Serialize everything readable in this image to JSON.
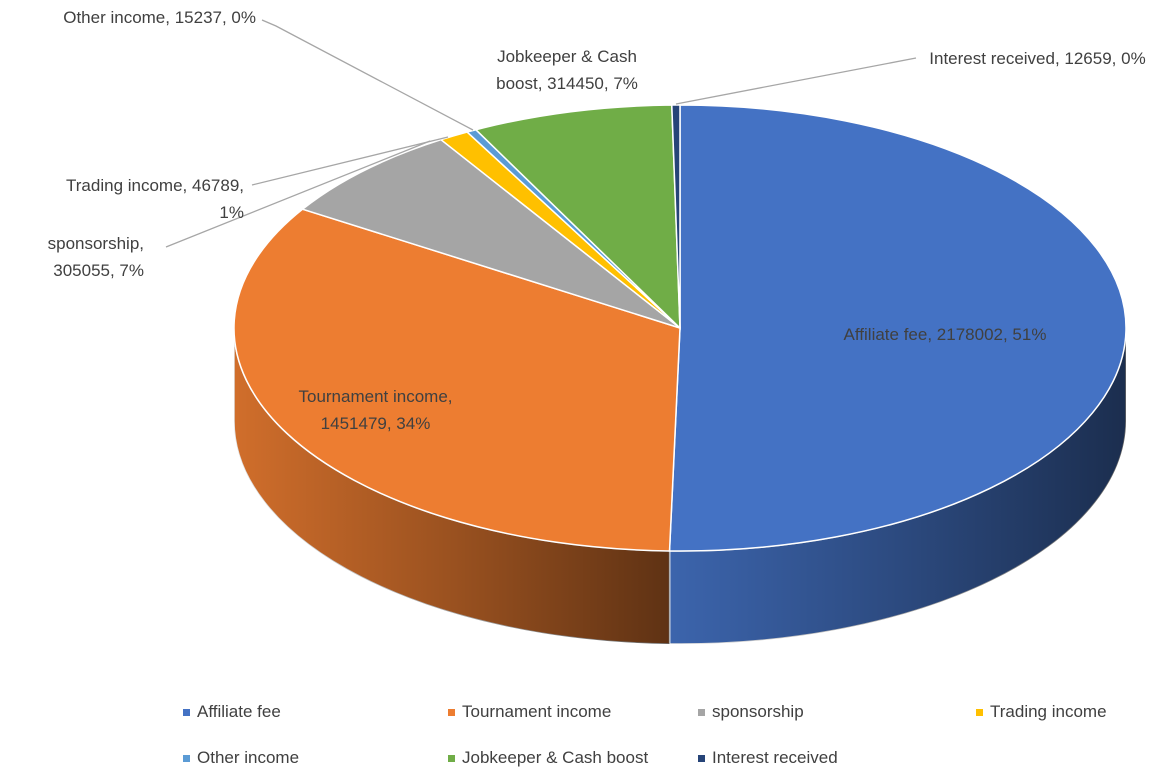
{
  "chart_data": {
    "type": "pie3d",
    "categories": [
      "Affiliate fee",
      "Tournament income",
      "sponsorship",
      "Trading income",
      "Other income",
      "Jobkeeper & Cash boost",
      "Interest received"
    ],
    "values": [
      2178002,
      1451479,
      305055,
      46789,
      15237,
      314450,
      12659
    ],
    "value_labels": [
      "Affiliate fee, 2178002, 51%",
      "Tournament income, 1451479, 34%",
      "sponsorship, 305055, 7%",
      "Trading income, 46789, 1%",
      "Other income, 15237, 0%",
      "Jobkeeper & Cash boost, 314450, 7%",
      "Interest received, 12659, 0%"
    ],
    "colors": [
      "#4472c4",
      "#ed7d31",
      "#a5a5a5",
      "#ffc000",
      "#5b9bd5",
      "#70ad47",
      "#264478"
    ],
    "legend": "bottom"
  }
}
